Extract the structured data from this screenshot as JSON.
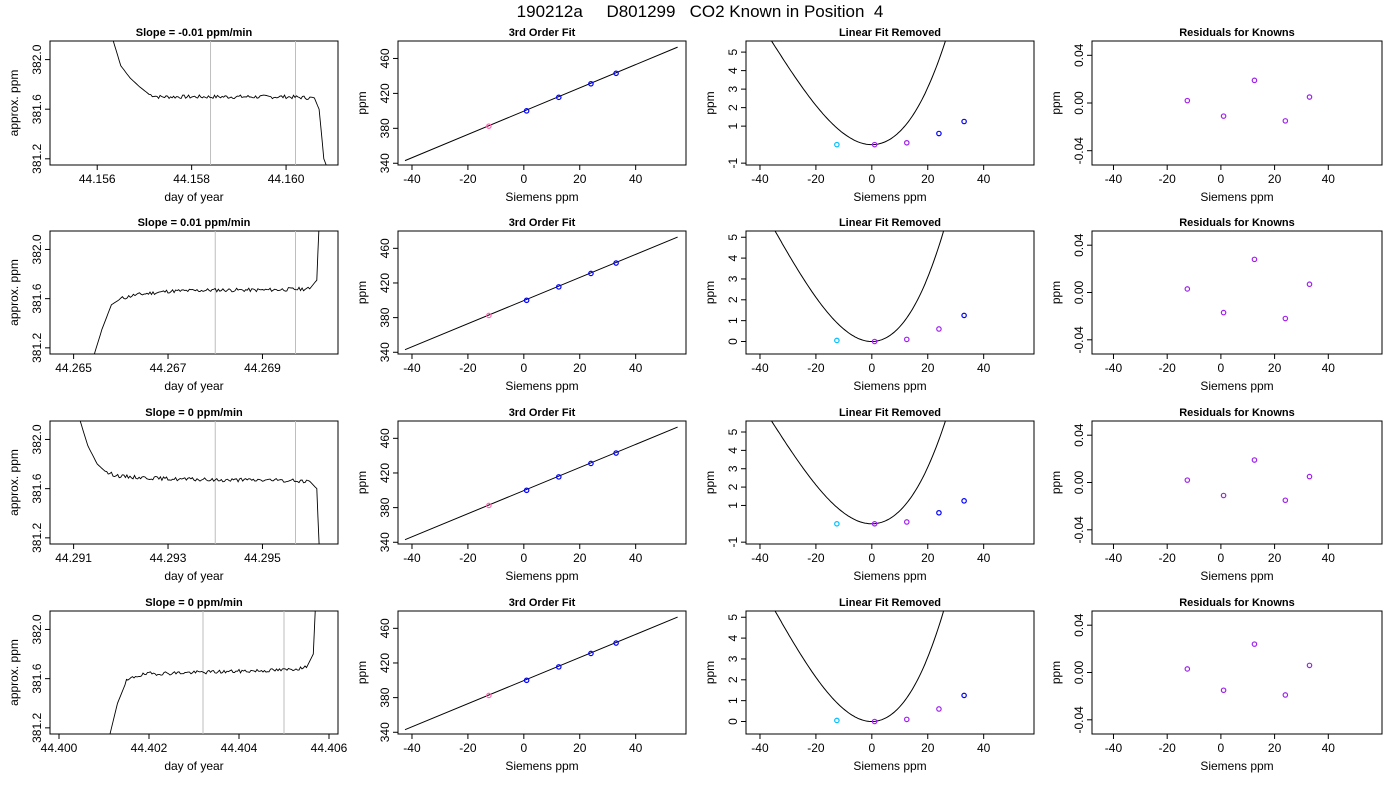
{
  "figure_title": "190212a     D801299   CO2 Known in Position  4",
  "colors": {
    "axis": "#000000",
    "line": "#000000",
    "vline": "#bebebe",
    "point_blue": "#0000ff",
    "point_purple": "#a020f0",
    "point_cyan": "#00bfff",
    "point_magenta": "#ff69b4"
  },
  "chart_data": [
    {
      "type": "line",
      "title": "Slope =  -0.01  ppm/min",
      "xlabel": "day of year",
      "ylabel": "approx. ppm",
      "xlim": [
        44.155,
        44.1611
      ],
      "ylim": [
        381.15,
        382.15
      ],
      "xticks": [
        44.156,
        44.158,
        44.16
      ],
      "xtick_labels": [
        "44.156",
        "44.158",
        "44.160"
      ],
      "yticks": [
        381.2,
        381.6,
        382.0
      ],
      "ytick_labels": [
        "381.2",
        "381.6",
        "382.0"
      ],
      "vlines": [
        44.1584,
        44.1602
      ],
      "trace": [
        [
          44.1563,
          382.2
        ],
        [
          44.1565,
          381.95
        ],
        [
          44.1567,
          381.85
        ],
        [
          44.1569,
          381.78
        ],
        [
          44.1571,
          381.72
        ],
        [
          44.1573,
          381.7
        ],
        [
          44.158,
          381.7
        ],
        [
          44.159,
          381.7
        ],
        [
          44.16,
          381.7
        ],
        [
          44.1606,
          381.69
        ],
        [
          44.1607,
          381.6
        ],
        [
          44.1608,
          381.2
        ],
        [
          44.16085,
          381.15
        ]
      ]
    },
    {
      "type": "line",
      "title": "3rd Order Fit",
      "xlabel": "Siemens ppm",
      "ylabel": "ppm",
      "xlim": [
        -45,
        58
      ],
      "ylim": [
        338,
        480
      ],
      "xticks": [
        -40,
        -20,
        0,
        20,
        40
      ],
      "xtick_labels": [
        "-40",
        "-20",
        "0",
        "20",
        "40"
      ],
      "yticks": [
        340,
        380,
        420,
        460
      ],
      "ytick_labels": [
        "340",
        "380",
        "420",
        "460"
      ],
      "line": [
        [
          -42.5,
          343
        ],
        [
          55,
          473
        ]
      ],
      "points": [
        [
          -12.5,
          382.5,
          "magenta"
        ],
        [
          1,
          400,
          "blue"
        ],
        [
          12.5,
          415.5,
          "blue"
        ],
        [
          24,
          431,
          "blue"
        ],
        [
          33,
          443,
          "blue"
        ]
      ]
    },
    {
      "type": "line",
      "title": "Linear Fit Removed",
      "xlabel": "Siemens ppm",
      "ylabel": "ppm",
      "xlim": [
        -45,
        58
      ],
      "ylim": [
        -1.1,
        5.6
      ],
      "xticks": [
        -40,
        -20,
        0,
        20,
        40
      ],
      "xtick_labels": [
        "-40",
        "-20",
        "0",
        "20",
        "40"
      ],
      "yticks": [
        -1,
        1,
        2,
        3,
        4,
        5
      ],
      "ytick_labels": [
        "-1",
        "1",
        "2",
        "3",
        "4",
        "5"
      ],
      "curve_coeffs": [
        6e-05,
        0.0065,
        0.0
      ],
      "curve_xrange": [
        -42,
        55
      ],
      "points": [
        [
          -12.5,
          0.0,
          "cyan"
        ],
        [
          1,
          0.0,
          "purple"
        ],
        [
          12.5,
          0.1,
          "purple"
        ],
        [
          24,
          0.6,
          "blue"
        ],
        [
          33,
          1.25,
          "blue"
        ]
      ]
    },
    {
      "type": "scatter",
      "title": "Residuals for Knowns",
      "xlabel": "Siemens ppm",
      "ylabel": "ppm",
      "xlim": [
        -48,
        60
      ],
      "ylim": [
        -0.052,
        0.052
      ],
      "xticks": [
        -40,
        -20,
        0,
        20,
        40
      ],
      "xtick_labels": [
        "-40",
        "-20",
        "0",
        "20",
        "40"
      ],
      "yticks": [
        -0.04,
        0.0,
        0.04
      ],
      "ytick_labels": [
        "-0.04",
        "0.00",
        "0.04"
      ],
      "points": [
        [
          -12.5,
          0.002,
          "purple"
        ],
        [
          1,
          -0.011,
          "purple"
        ],
        [
          12.5,
          0.019,
          "purple"
        ],
        [
          24,
          -0.015,
          "purple"
        ],
        [
          33,
          0.005,
          "purple"
        ]
      ]
    },
    {
      "type": "line",
      "title": "Slope =  0.01  ppm/min",
      "xlabel": "day of year",
      "ylabel": "approx. ppm",
      "xlim": [
        44.2645,
        44.2706
      ],
      "ylim": [
        381.15,
        382.15
      ],
      "xticks": [
        44.265,
        44.267,
        44.269
      ],
      "xtick_labels": [
        "44.265",
        "44.267",
        "44.269"
      ],
      "yticks": [
        381.2,
        381.6,
        382.0
      ],
      "ytick_labels": [
        "381.2",
        "381.6",
        "382.0"
      ],
      "vlines": [
        44.268,
        44.2697
      ],
      "trace": [
        [
          44.2654,
          381.1
        ],
        [
          44.2656,
          381.35
        ],
        [
          44.2658,
          381.55
        ],
        [
          44.266,
          381.6
        ],
        [
          44.2663,
          381.63
        ],
        [
          44.267,
          381.66
        ],
        [
          44.268,
          381.67
        ],
        [
          44.269,
          381.67
        ],
        [
          44.27,
          381.68
        ],
        [
          44.27015,
          381.75
        ],
        [
          44.2702,
          382.2
        ]
      ]
    },
    {
      "type": "line",
      "title": "3rd Order Fit",
      "xlabel": "Siemens ppm",
      "ylabel": "ppm",
      "xlim": [
        -45,
        58
      ],
      "ylim": [
        338,
        480
      ],
      "xticks": [
        -40,
        -20,
        0,
        20,
        40
      ],
      "xtick_labels": [
        "-40",
        "-20",
        "0",
        "20",
        "40"
      ],
      "yticks": [
        340,
        380,
        420,
        460
      ],
      "ytick_labels": [
        "340",
        "380",
        "420",
        "460"
      ],
      "line": [
        [
          -42.5,
          343
        ],
        [
          55,
          473
        ]
      ],
      "points": [
        [
          -12.5,
          382.5,
          "magenta"
        ],
        [
          1,
          400,
          "blue"
        ],
        [
          12.5,
          415.5,
          "blue"
        ],
        [
          24,
          431,
          "blue"
        ],
        [
          33,
          443,
          "blue"
        ]
      ]
    },
    {
      "type": "line",
      "title": "Linear Fit Removed",
      "xlabel": "Siemens ppm",
      "ylabel": "ppm",
      "xlim": [
        -45,
        58
      ],
      "ylim": [
        -0.6,
        5.3
      ],
      "xticks": [
        -40,
        -20,
        0,
        20,
        40
      ],
      "xtick_labels": [
        "-40",
        "-20",
        "0",
        "20",
        "40"
      ],
      "yticks": [
        0,
        1,
        2,
        3,
        4,
        5
      ],
      "ytick_labels": [
        "0",
        "1",
        "2",
        "3",
        "4",
        "5"
      ],
      "curve_coeffs": [
        6e-05,
        0.0065,
        0.0
      ],
      "curve_xrange": [
        -42,
        55
      ],
      "points": [
        [
          -12.5,
          0.05,
          "cyan"
        ],
        [
          1,
          0.0,
          "purple"
        ],
        [
          12.5,
          0.1,
          "purple"
        ],
        [
          24,
          0.6,
          "purple"
        ],
        [
          33,
          1.25,
          "blue"
        ]
      ]
    },
    {
      "type": "scatter",
      "title": "Residuals for Knowns",
      "xlabel": "Siemens ppm",
      "ylabel": "ppm",
      "xlim": [
        -48,
        60
      ],
      "ylim": [
        -0.052,
        0.052
      ],
      "xticks": [
        -40,
        -20,
        0,
        20,
        40
      ],
      "xtick_labels": [
        "-40",
        "-20",
        "0",
        "20",
        "40"
      ],
      "yticks": [
        -0.04,
        0.0,
        0.04
      ],
      "ytick_labels": [
        "-0.04",
        "0.00",
        "0.04"
      ],
      "points": [
        [
          -12.5,
          0.003,
          "purple"
        ],
        [
          1,
          -0.017,
          "purple"
        ],
        [
          12.5,
          0.028,
          "purple"
        ],
        [
          24,
          -0.022,
          "purple"
        ],
        [
          33,
          0.007,
          "purple"
        ]
      ]
    },
    {
      "type": "line",
      "title": "Slope =  0  ppm/min",
      "xlabel": "day of year",
      "ylabel": "approx. ppm",
      "xlim": [
        44.2905,
        44.2966
      ],
      "ylim": [
        381.15,
        382.15
      ],
      "xticks": [
        44.291,
        44.293,
        44.295
      ],
      "xtick_labels": [
        "44.291",
        "44.293",
        "44.295"
      ],
      "yticks": [
        381.2,
        381.6,
        382.0
      ],
      "ytick_labels": [
        "381.2",
        "381.6",
        "382.0"
      ],
      "vlines": [
        44.294,
        44.2957
      ],
      "trace": [
        [
          44.2911,
          382.2
        ],
        [
          44.2913,
          381.95
        ],
        [
          44.2915,
          381.8
        ],
        [
          44.2917,
          381.73
        ],
        [
          44.292,
          381.7
        ],
        [
          44.293,
          381.68
        ],
        [
          44.294,
          381.67
        ],
        [
          44.295,
          381.67
        ],
        [
          44.296,
          381.66
        ],
        [
          44.29615,
          381.6
        ],
        [
          44.2962,
          381.15
        ]
      ]
    },
    {
      "type": "line",
      "title": "3rd Order Fit",
      "xlabel": "Siemens ppm",
      "ylabel": "ppm",
      "xlim": [
        -45,
        58
      ],
      "ylim": [
        338,
        480
      ],
      "xticks": [
        -40,
        -20,
        0,
        20,
        40
      ],
      "xtick_labels": [
        "-40",
        "-20",
        "0",
        "20",
        "40"
      ],
      "yticks": [
        340,
        380,
        420,
        460
      ],
      "ytick_labels": [
        "340",
        "380",
        "420",
        "460"
      ],
      "line": [
        [
          -42.5,
          343
        ],
        [
          55,
          473
        ]
      ],
      "points": [
        [
          -12.5,
          382.5,
          "magenta"
        ],
        [
          1,
          400,
          "blue"
        ],
        [
          12.5,
          415.5,
          "blue"
        ],
        [
          24,
          431,
          "blue"
        ],
        [
          33,
          443,
          "blue"
        ]
      ]
    },
    {
      "type": "line",
      "title": "Linear Fit Removed",
      "xlabel": "Siemens ppm",
      "ylabel": "ppm",
      "xlim": [
        -45,
        58
      ],
      "ylim": [
        -1.1,
        5.6
      ],
      "xticks": [
        -40,
        -20,
        0,
        20,
        40
      ],
      "xtick_labels": [
        "-40",
        "-20",
        "0",
        "20",
        "40"
      ],
      "yticks": [
        -1,
        1,
        2,
        3,
        4,
        5
      ],
      "ytick_labels": [
        "-1",
        "1",
        "2",
        "3",
        "4",
        "5"
      ],
      "curve_coeffs": [
        6e-05,
        0.0065,
        0.0
      ],
      "curve_xrange": [
        -42,
        55
      ],
      "points": [
        [
          -12.5,
          0.0,
          "cyan"
        ],
        [
          1,
          0.0,
          "purple"
        ],
        [
          12.5,
          0.1,
          "purple"
        ],
        [
          24,
          0.6,
          "blue"
        ],
        [
          33,
          1.25,
          "blue"
        ]
      ]
    },
    {
      "type": "scatter",
      "title": "Residuals for Knowns",
      "xlabel": "Siemens ppm",
      "ylabel": "ppm",
      "xlim": [
        -48,
        60
      ],
      "ylim": [
        -0.052,
        0.052
      ],
      "xticks": [
        -40,
        -20,
        0,
        20,
        40
      ],
      "xtick_labels": [
        "-40",
        "-20",
        "0",
        "20",
        "40"
      ],
      "yticks": [
        -0.04,
        0.0,
        0.04
      ],
      "ytick_labels": [
        "-0.04",
        "0.00",
        "0.04"
      ],
      "points": [
        [
          -12.5,
          0.002,
          "purple"
        ],
        [
          1,
          -0.011,
          "purple"
        ],
        [
          12.5,
          0.019,
          "purple"
        ],
        [
          24,
          -0.015,
          "purple"
        ],
        [
          33,
          0.005,
          "purple"
        ]
      ]
    },
    {
      "type": "line",
      "title": "Slope =  0  ppm/min",
      "xlabel": "day of year",
      "ylabel": "approx. ppm",
      "xlim": [
        44.3998,
        44.4062
      ],
      "ylim": [
        381.15,
        382.15
      ],
      "xticks": [
        44.4,
        44.402,
        44.404,
        44.406
      ],
      "xtick_labels": [
        "44.400",
        "44.402",
        "44.404",
        "44.406"
      ],
      "yticks": [
        381.2,
        381.6,
        382.0
      ],
      "ytick_labels": [
        "381.2",
        "381.6",
        "382.0"
      ],
      "vlines": [
        44.4032,
        44.405
      ],
      "trace": [
        [
          44.4011,
          381.1
        ],
        [
          44.4013,
          381.4
        ],
        [
          44.4015,
          381.58
        ],
        [
          44.4017,
          381.62
        ],
        [
          44.402,
          381.64
        ],
        [
          44.403,
          381.65
        ],
        [
          44.404,
          381.66
        ],
        [
          44.405,
          381.67
        ],
        [
          44.4055,
          381.69
        ],
        [
          44.40565,
          381.8
        ],
        [
          44.4057,
          382.2
        ]
      ]
    },
    {
      "type": "line",
      "title": "3rd Order Fit",
      "xlabel": "Siemens ppm",
      "ylabel": "ppm",
      "xlim": [
        -45,
        58
      ],
      "ylim": [
        338,
        480
      ],
      "xticks": [
        -40,
        -20,
        0,
        20,
        40
      ],
      "xtick_labels": [
        "-40",
        "-20",
        "0",
        "20",
        "40"
      ],
      "yticks": [
        340,
        380,
        420,
        460
      ],
      "ytick_labels": [
        "340",
        "380",
        "420",
        "460"
      ],
      "line": [
        [
          -42.5,
          343
        ],
        [
          55,
          473
        ]
      ],
      "points": [
        [
          -12.5,
          382.5,
          "magenta"
        ],
        [
          1,
          400,
          "blue"
        ],
        [
          12.5,
          415.5,
          "blue"
        ],
        [
          24,
          431,
          "blue"
        ],
        [
          33,
          443,
          "blue"
        ]
      ]
    },
    {
      "type": "line",
      "title": "Linear Fit Removed",
      "xlabel": "Siemens ppm",
      "ylabel": "ppm",
      "xlim": [
        -45,
        58
      ],
      "ylim": [
        -0.6,
        5.3
      ],
      "xticks": [
        -40,
        -20,
        0,
        20,
        40
      ],
      "xtick_labels": [
        "-40",
        "-20",
        "0",
        "20",
        "40"
      ],
      "yticks": [
        0,
        1,
        2,
        3,
        4,
        5
      ],
      "ytick_labels": [
        "0",
        "1",
        "2",
        "3",
        "4",
        "5"
      ],
      "curve_coeffs": [
        6e-05,
        0.0065,
        0.0
      ],
      "curve_xrange": [
        -42,
        55
      ],
      "points": [
        [
          -12.5,
          0.05,
          "cyan"
        ],
        [
          1,
          0.0,
          "purple"
        ],
        [
          12.5,
          0.1,
          "purple"
        ],
        [
          24,
          0.6,
          "purple"
        ],
        [
          33,
          1.25,
          "blue"
        ]
      ]
    },
    {
      "type": "scatter",
      "title": "Residuals for Knowns",
      "xlabel": "Siemens ppm",
      "ylabel": "ppm",
      "xlim": [
        -48,
        60
      ],
      "ylim": [
        -0.052,
        0.052
      ],
      "xticks": [
        -40,
        -20,
        0,
        20,
        40
      ],
      "xtick_labels": [
        "-40",
        "-20",
        "0",
        "20",
        "40"
      ],
      "yticks": [
        -0.04,
        0.0,
        0.04
      ],
      "ytick_labels": [
        "-0.04",
        "0.00",
        "0.04"
      ],
      "points": [
        [
          -12.5,
          0.003,
          "purple"
        ],
        [
          1,
          -0.015,
          "purple"
        ],
        [
          12.5,
          0.024,
          "purple"
        ],
        [
          24,
          -0.019,
          "purple"
        ],
        [
          33,
          0.006,
          "purple"
        ]
      ]
    }
  ]
}
